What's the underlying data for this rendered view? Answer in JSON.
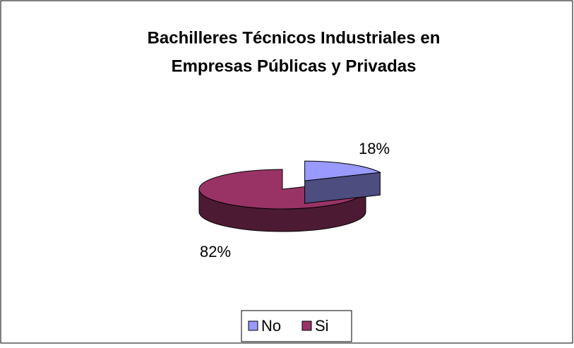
{
  "chart_data": {
    "type": "pie3d",
    "title": [
      "Bachilleres Técnicos Industriales en",
      "Empresas Públicas y Privadas"
    ],
    "categories": [
      "No",
      "Si"
    ],
    "values": [
      18,
      82
    ],
    "value_labels": [
      "18%",
      "82%"
    ],
    "colors": [
      "#9999ff",
      "#993366"
    ],
    "legend": "bottom"
  }
}
